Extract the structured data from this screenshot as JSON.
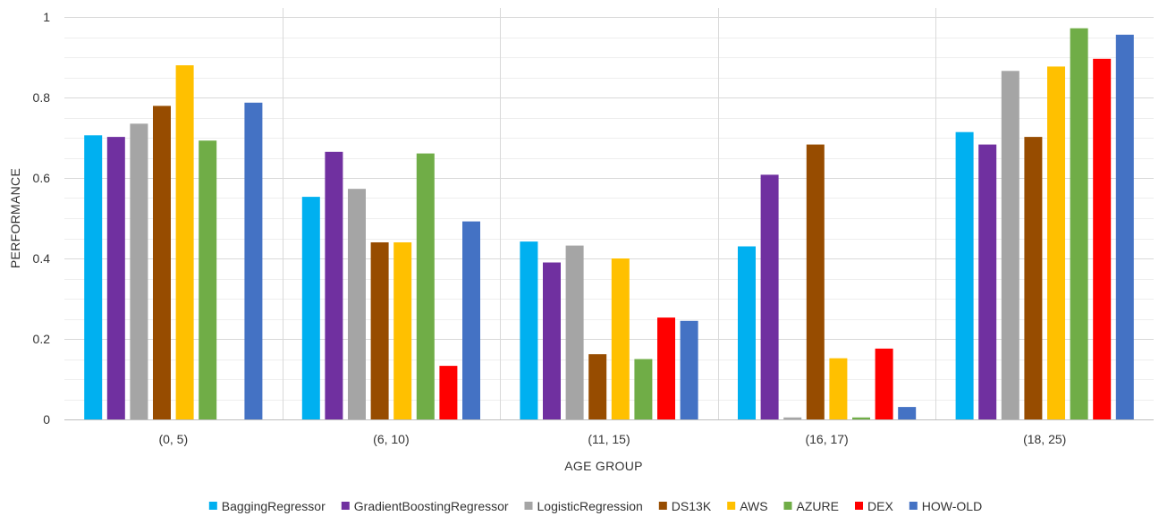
{
  "chart_data": {
    "type": "bar",
    "title": "",
    "xlabel": "AGE GROUP",
    "ylabel": "PERFORMANCE",
    "ylim": [
      0,
      1
    ],
    "yticks": [
      0,
      0.2,
      0.4,
      0.6,
      0.8,
      1
    ],
    "ytick_labels": [
      "0",
      "0.2",
      "0.4",
      "0.6",
      "0.8",
      "1"
    ],
    "grid": "horizontal major and minor gridlines, vertical separators between groups",
    "legend_position": "bottom",
    "categories": [
      "(0, 5)",
      "(6, 10)",
      "(11, 15)",
      "(16, 17)",
      "(18, 25)"
    ],
    "series": [
      {
        "name": "BaggingRegressor",
        "color": "#00B0F0",
        "values": [
          0.706,
          0.553,
          0.442,
          0.43,
          0.714
        ]
      },
      {
        "name": "GradientBoostingRegressor",
        "color": "#7030A0",
        "values": [
          0.702,
          0.665,
          0.39,
          0.608,
          0.683
        ]
      },
      {
        "name": "LogisticRegression",
        "color": "#A5A5A5",
        "values": [
          0.735,
          0.573,
          0.432,
          0.005,
          0.866
        ]
      },
      {
        "name": "DS13K",
        "color": "#974C00",
        "values": [
          0.779,
          0.44,
          0.162,
          0.683,
          0.702
        ]
      },
      {
        "name": "AWS",
        "color": "#FFC000",
        "values": [
          0.88,
          0.44,
          0.4,
          0.152,
          0.877
        ]
      },
      {
        "name": "AZURE",
        "color": "#70AD47",
        "values": [
          0.693,
          0.661,
          0.15,
          0.005,
          0.972
        ]
      },
      {
        "name": "DEX",
        "color": "#FF0000",
        "values": [
          0.0,
          0.133,
          0.253,
          0.176,
          0.896
        ]
      },
      {
        "name": "HOW-OLD",
        "color": "#4472C4",
        "values": [
          0.787,
          0.492,
          0.245,
          0.031,
          0.956
        ]
      }
    ]
  }
}
